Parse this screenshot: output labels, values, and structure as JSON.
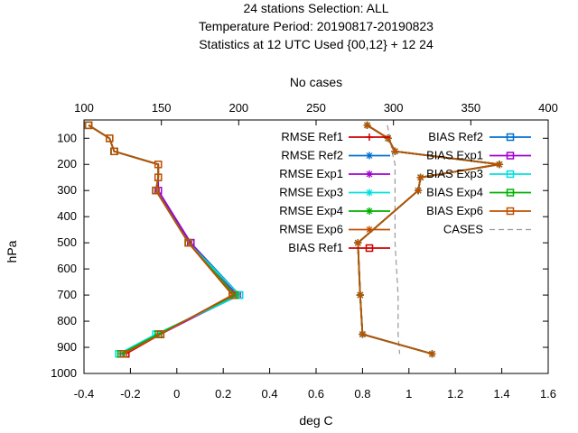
{
  "chart_data": {
    "type": "line",
    "title_lines": [
      "24 stations Selection: ALL",
      "Temperature  Period: 20190817-20190823",
      "Statistics at 12 UTC  Used {00,12} + 12 24"
    ],
    "xlabel": "deg C",
    "x2label": "No cases",
    "ylabel": "hPa",
    "xlim": [
      -0.4,
      1.6
    ],
    "x2lim": [
      100,
      400
    ],
    "ylim": [
      1000,
      30
    ],
    "xticks": [
      "-0.4",
      "-0.2",
      "0",
      "0.2",
      "0.4",
      "0.6",
      "0.8",
      "1",
      "1.2",
      "1.4",
      "1.6"
    ],
    "x2ticks": [
      "100",
      "150",
      "200",
      "250",
      "300",
      "350",
      "400"
    ],
    "yticks": [
      "100",
      "200",
      "300",
      "400",
      "500",
      "600",
      "700",
      "800",
      "900",
      "1000"
    ],
    "pressure_levels": [
      50,
      100,
      150,
      200,
      250,
      300,
      500,
      700,
      850,
      925
    ],
    "series": [
      {
        "name": "RMSE Ref1",
        "color": "#cc0000",
        "marker": "plus",
        "values": [
          0.82,
          0.91,
          0.94,
          1.39,
          1.05,
          1.04,
          0.78,
          0.79,
          0.8,
          1.1
        ]
      },
      {
        "name": "RMSE Ref2",
        "color": "#0070d0",
        "marker": "star",
        "values": [
          0.82,
          0.91,
          0.94,
          1.39,
          1.05,
          1.04,
          0.78,
          0.79,
          0.8,
          1.1
        ]
      },
      {
        "name": "RMSE Exp1",
        "color": "#a000d0",
        "marker": "star",
        "values": [
          0.82,
          0.91,
          0.94,
          1.39,
          1.05,
          1.04,
          0.78,
          0.79,
          0.8,
          1.1
        ]
      },
      {
        "name": "RMSE Exp3",
        "color": "#00e0e0",
        "marker": "star",
        "values": [
          0.82,
          0.91,
          0.94,
          1.39,
          1.05,
          1.04,
          0.78,
          0.79,
          0.8,
          1.1
        ]
      },
      {
        "name": "RMSE Exp4",
        "color": "#00b000",
        "marker": "star",
        "values": [
          0.82,
          0.91,
          0.94,
          1.39,
          1.05,
          1.04,
          0.78,
          0.79,
          0.8,
          1.1
        ]
      },
      {
        "name": "RMSE Exp6",
        "color": "#c05000",
        "marker": "star",
        "values": [
          0.82,
          0.91,
          0.94,
          1.39,
          1.05,
          1.04,
          0.78,
          0.79,
          0.8,
          1.1
        ]
      },
      {
        "name": "BIAS Ref1",
        "color": "#cc0000",
        "marker": "square",
        "values": [
          -0.38,
          -0.29,
          -0.27,
          -0.08,
          -0.08,
          -0.09,
          0.05,
          0.24,
          -0.07,
          -0.22
        ]
      },
      {
        "name": "BIAS Ref2",
        "color": "#0070d0",
        "marker": "square",
        "values": [
          -0.38,
          -0.29,
          -0.27,
          -0.08,
          -0.08,
          -0.09,
          0.06,
          0.27,
          -0.08,
          -0.24
        ]
      },
      {
        "name": "BIAS Exp1",
        "color": "#a000d0",
        "marker": "square",
        "values": [
          -0.38,
          -0.29,
          -0.27,
          -0.08,
          -0.08,
          -0.08,
          0.06,
          0.26,
          -0.07,
          -0.23
        ]
      },
      {
        "name": "BIAS Exp3",
        "color": "#00e0e0",
        "marker": "square",
        "values": [
          -0.38,
          -0.29,
          -0.27,
          -0.08,
          -0.08,
          -0.09,
          0.05,
          0.27,
          -0.09,
          -0.25
        ]
      },
      {
        "name": "BIAS Exp4",
        "color": "#00b000",
        "marker": "square",
        "values": [
          -0.38,
          -0.29,
          -0.27,
          -0.08,
          -0.08,
          -0.09,
          0.05,
          0.25,
          -0.08,
          -0.24
        ]
      },
      {
        "name": "BIAS Exp6",
        "color": "#c05000",
        "marker": "square",
        "values": [
          -0.38,
          -0.29,
          -0.27,
          -0.08,
          -0.08,
          -0.09,
          0.05,
          0.24,
          -0.07,
          -0.23
        ]
      }
    ],
    "cases": {
      "name": "CASES",
      "color": "#999999",
      "levels": [
        50,
        100,
        150,
        200,
        250,
        300,
        500,
        700,
        850,
        925
      ],
      "values": [
        296,
        298,
        299,
        301,
        301,
        301,
        301,
        303,
        303,
        304
      ]
    },
    "legend_placement": "top-right, two columns",
    "grid": false
  }
}
